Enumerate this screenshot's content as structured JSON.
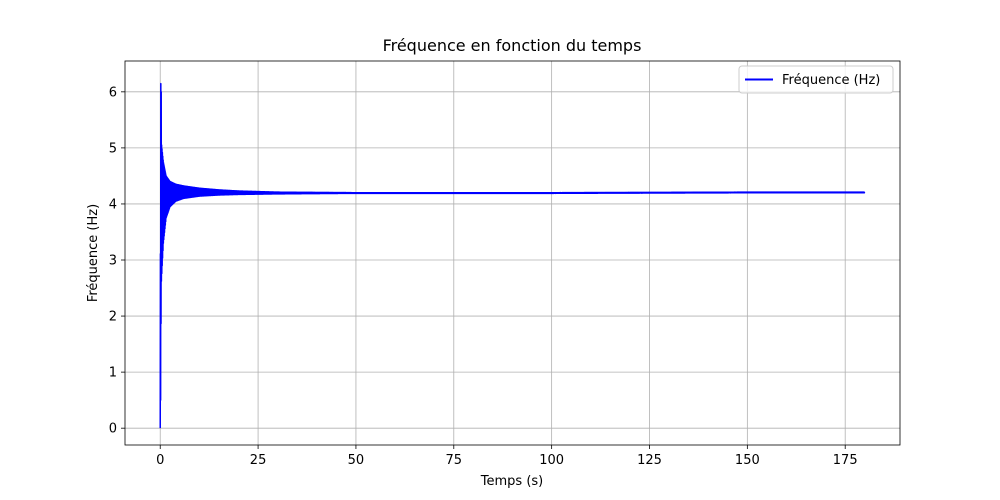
{
  "chart_data": {
    "type": "line",
    "title": "Fréquence en fonction du temps",
    "xlabel": "Temps (s)",
    "ylabel": "Fréquence (Hz)",
    "xlim": [
      -9,
      189
    ],
    "ylim": [
      -0.3,
      6.55
    ],
    "xticks": [
      0,
      25,
      50,
      75,
      100,
      125,
      150,
      175
    ],
    "yticks": [
      0,
      1,
      2,
      3,
      4,
      5,
      6
    ],
    "grid": true,
    "legend_position": "top-right",
    "series": [
      {
        "name": "Fréquence (Hz)",
        "color": "#0000ff",
        "envelope": {
          "upper": [
            [
              0,
              0
            ],
            [
              0.1,
              6.22
            ],
            [
              0.25,
              6.0
            ],
            [
              0.35,
              5.05
            ],
            [
              0.8,
              4.75
            ],
            [
              1.5,
              4.5
            ],
            [
              2.5,
              4.4
            ],
            [
              4,
              4.35
            ],
            [
              6,
              4.32
            ],
            [
              10,
              4.28
            ],
            [
              15,
              4.25
            ],
            [
              20,
              4.23
            ],
            [
              30,
              4.21
            ],
            [
              50,
              4.2
            ],
            [
              100,
              4.2
            ],
            [
              150,
              4.21
            ],
            [
              180,
              4.21
            ]
          ],
          "lower": [
            [
              0,
              0
            ],
            [
              0.1,
              0.5
            ],
            [
              0.25,
              2.55
            ],
            [
              0.5,
              2.9
            ],
            [
              0.8,
              3.3
            ],
            [
              1.5,
              3.75
            ],
            [
              2.5,
              3.95
            ],
            [
              4,
              4.05
            ],
            [
              6,
              4.1
            ],
            [
              10,
              4.14
            ],
            [
              15,
              4.16
            ],
            [
              20,
              4.17
            ],
            [
              30,
              4.18
            ],
            [
              50,
              4.19
            ],
            [
              100,
              4.19
            ],
            [
              150,
              4.2
            ],
            [
              180,
              4.2
            ]
          ]
        }
      }
    ]
  }
}
